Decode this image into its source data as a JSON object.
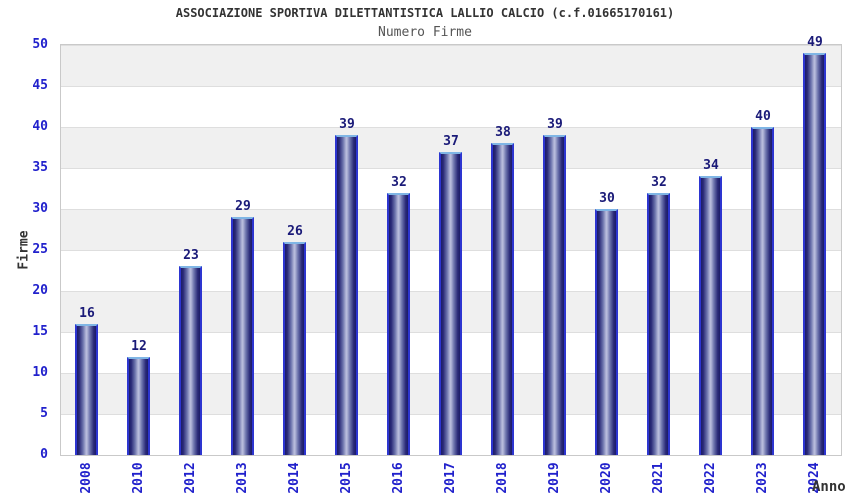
{
  "chart_data": {
    "type": "bar",
    "title": "ASSOCIAZIONE SPORTIVA DILETTANTISTICA LALLIO CALCIO (c.f.01665170161)",
    "subtitle": "Numero Firme",
    "xlabel": "Anno",
    "ylabel": "Firme",
    "categories": [
      "2008",
      "2010",
      "2012",
      "2013",
      "2014",
      "2015",
      "2016",
      "2017",
      "2018",
      "2019",
      "2020",
      "2021",
      "2022",
      "2023",
      "2024"
    ],
    "values": [
      16,
      12,
      23,
      29,
      26,
      39,
      32,
      37,
      38,
      39,
      30,
      32,
      34,
      40,
      49
    ],
    "ylim": [
      0,
      50
    ],
    "yticks": [
      0,
      5,
      10,
      15,
      20,
      25,
      30,
      35,
      40,
      45,
      50
    ],
    "legend": "none",
    "grid": "horizontal bands alternating gray/white every 5 units, gridline at each tick",
    "value_labels": "above each bar",
    "colors": {
      "bar_edge": "#2d35d0",
      "bar_top_edge": "#7fb5e5",
      "bar_dark": "#1c1c66",
      "bar_mid": "#6d74ad",
      "bar_light": "#b7bbdb",
      "tick_label": "#2121cc",
      "value_label": "#1a1a78",
      "band_gray": "#f0f0f0",
      "gridline": "#dedede",
      "plot_border": "#c9c9c9",
      "title_color": "#333333",
      "subtitle_color": "#555555",
      "axis_label_color": "#333333",
      "background": "#ffffff"
    }
  }
}
